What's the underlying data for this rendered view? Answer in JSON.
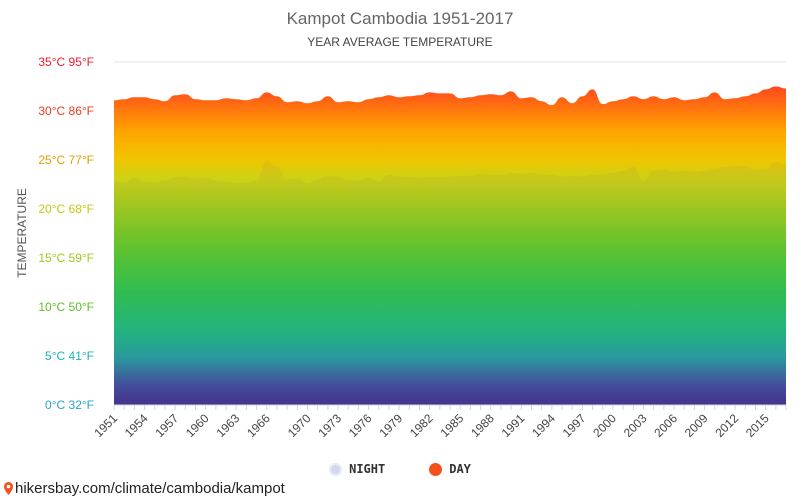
{
  "page": {
    "title": "Kampot Cambodia 1951-2017",
    "subtitle": "YEAR AVERAGE TEMPERATURE",
    "source_link": "hikersbay.com/climate/cambodia/kampot"
  },
  "legend": {
    "night_label": "NIGHT",
    "day_label": "DAY",
    "night_color": "#d4d6ee",
    "day_color": "#f4511e"
  },
  "chart_data": {
    "type": "area",
    "title": "Kampot Cambodia 1951-2017",
    "subtitle": "YEAR AVERAGE TEMPERATURE",
    "ylabel": "TEMPERATURE",
    "xlabel": "",
    "ylim": [
      0,
      35
    ],
    "yticks": [
      {
        "value": 0,
        "label": "0°C 32°F",
        "color": "#2aa3c9"
      },
      {
        "value": 5,
        "label": "5°C 41°F",
        "color": "#1ab3b3"
      },
      {
        "value": 10,
        "label": "10°C 50°F",
        "color": "#5cbf24"
      },
      {
        "value": 15,
        "label": "15°C 59°F",
        "color": "#9ccb16"
      },
      {
        "value": 20,
        "label": "20°C 68°F",
        "color": "#c9c514"
      },
      {
        "value": 25,
        "label": "25°C 77°F",
        "color": "#e0a000"
      },
      {
        "value": 30,
        "label": "30°C 86°F",
        "color": "#ee3b1d"
      },
      {
        "value": 35,
        "label": "35°C 95°F",
        "color": "#ee1c2b"
      }
    ],
    "xtick_labels": [
      "1951",
      "1954",
      "1957",
      "1960",
      "1963",
      "1966",
      "1970",
      "1973",
      "1976",
      "1979",
      "1982",
      "1985",
      "1988",
      "1991",
      "1994",
      "1997",
      "2000",
      "2003",
      "2006",
      "2009",
      "2012",
      "2015"
    ],
    "x_start": 1951,
    "x_end": 2017,
    "grid": true,
    "legend_position": "bottom",
    "series": [
      {
        "name": "DAY",
        "values": [
          31.1,
          31.2,
          31.4,
          31.4,
          31.2,
          31.0,
          31.6,
          31.7,
          31.2,
          31.1,
          31.1,
          31.3,
          31.2,
          31.1,
          31.3,
          31.9,
          31.5,
          30.9,
          31.0,
          30.8,
          31.0,
          31.5,
          30.9,
          31.0,
          30.9,
          31.2,
          31.4,
          31.6,
          31.4,
          31.5,
          31.6,
          31.9,
          31.8,
          31.8,
          31.3,
          31.4,
          31.6,
          31.7,
          31.6,
          32.0,
          31.3,
          31.4,
          31.0,
          30.6,
          31.4,
          30.8,
          31.5,
          32.2,
          30.7,
          31.0,
          31.2,
          31.5,
          31.2,
          31.5,
          31.2,
          31.4,
          31.1,
          31.2,
          31.4,
          31.9,
          31.2,
          31.3,
          31.5,
          31.8,
          32.2,
          32.5,
          32.3
        ]
      },
      {
        "name": "NIGHT",
        "values": [
          22.8,
          22.7,
          23.2,
          22.8,
          22.7,
          22.9,
          23.3,
          23.3,
          23.1,
          23.2,
          22.9,
          22.8,
          22.6,
          22.7,
          22.9,
          24.9,
          24.3,
          23.0,
          23.1,
          22.6,
          23.0,
          23.4,
          23.3,
          23.0,
          22.9,
          23.2,
          22.8,
          23.5,
          23.3,
          23.3,
          23.2,
          23.3,
          23.2,
          23.3,
          23.4,
          23.4,
          23.6,
          23.5,
          23.5,
          23.7,
          23.6,
          23.7,
          23.5,
          23.5,
          23.3,
          23.4,
          23.3,
          23.5,
          23.5,
          23.7,
          23.9,
          24.3,
          22.9,
          23.9,
          24.0,
          23.8,
          23.9,
          23.8,
          23.9,
          24.1,
          24.3,
          24.4,
          24.4,
          24.0,
          24.1,
          24.8,
          24.5
        ]
      }
    ]
  }
}
